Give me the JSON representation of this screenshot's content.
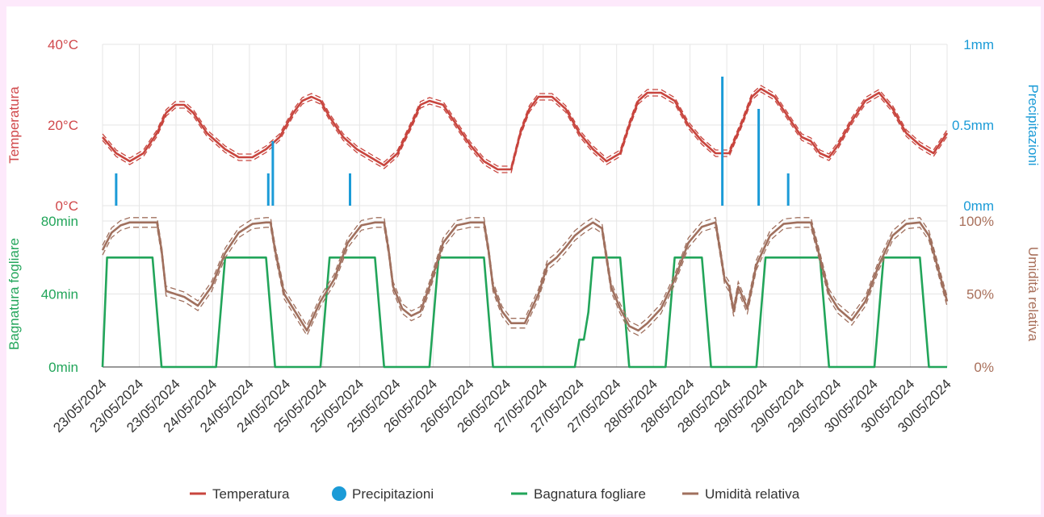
{
  "chart_data": {
    "type": "line",
    "x_dates": [
      "23/05/2024",
      "23/05/2024",
      "23/05/2024",
      "24/05/2024",
      "24/05/2024",
      "24/05/2024",
      "25/05/2024",
      "25/05/2024",
      "25/05/2024",
      "26/05/2024",
      "26/05/2024",
      "26/05/2024",
      "27/05/2024",
      "27/05/2024",
      "27/05/2024",
      "28/05/2024",
      "28/05/2024",
      "28/05/2024",
      "29/05/2024",
      "29/05/2024",
      "29/05/2024",
      "30/05/2024",
      "30/05/2024",
      "30/05/2024"
    ],
    "x_range_hours": [
      0,
      186
    ],
    "panels": {
      "top": {
        "left_axis": {
          "label": "Temperatura",
          "ticks": [
            "0°C",
            "20°C",
            "40°C"
          ],
          "range": [
            0,
            40
          ],
          "color": "#d0474a"
        },
        "right_axis": {
          "label": "Precipitazioni",
          "ticks": [
            "0mm",
            "0.5mm",
            "1mm"
          ],
          "range": [
            0,
            1
          ],
          "color": "#1b9bd7"
        }
      },
      "bottom": {
        "left_axis": {
          "label": "Bagnatura fogliare",
          "ticks": [
            "0min",
            "40min",
            "80min"
          ],
          "range": [
            0,
            80
          ],
          "color": "#22a55a"
        },
        "right_axis": {
          "label": "Umidità relativa",
          "ticks": [
            "0%",
            "50%",
            "100%"
          ],
          "range": [
            0,
            100
          ],
          "color": "#a86f5a"
        }
      }
    },
    "series": [
      {
        "name": "Temperatura",
        "panel": "top",
        "axis": "left",
        "color": "#c8453e",
        "x": [
          0,
          3,
          6,
          9,
          12,
          14,
          16,
          18,
          20,
          23,
          27,
          30,
          33,
          36,
          39,
          42,
          44,
          46,
          48,
          50,
          53,
          56,
          59,
          62,
          65,
          68,
          70,
          72,
          75,
          78,
          81,
          84,
          87,
          90,
          92,
          94,
          96,
          99,
          102,
          105,
          108,
          111,
          114,
          116,
          118,
          120,
          123,
          126,
          129,
          132,
          135,
          138,
          141,
          143,
          145,
          148,
          151,
          154,
          156,
          158,
          160,
          162,
          165,
          168,
          171,
          174,
          177,
          180,
          183,
          186
        ],
        "y": [
          17,
          13,
          11,
          13,
          18,
          23,
          25,
          25,
          23,
          18,
          14,
          12,
          12,
          14,
          17,
          23,
          26,
          27,
          26,
          22,
          17,
          14,
          12,
          10,
          13,
          20,
          25,
          26,
          25,
          20,
          15,
          11,
          9,
          9,
          18,
          24,
          27,
          27,
          24,
          18,
          14,
          11,
          13,
          20,
          26,
          28,
          28,
          26,
          20,
          16,
          13,
          13,
          21,
          27,
          29,
          27,
          22,
          17,
          16,
          13,
          12,
          15,
          21,
          26,
          28,
          24,
          18,
          15,
          13,
          18
        ]
      },
      {
        "name": "Precipitazioni",
        "panel": "top",
        "axis": "right",
        "color": "#1b9bd7",
        "x": [
          3,
          36.5,
          37.5,
          54.5,
          136.5,
          144.5,
          151
        ],
        "y": [
          0.2,
          0.2,
          0.4,
          0.2,
          0.8,
          0.6,
          0.2
        ]
      },
      {
        "name": "Bagnatura fogliare",
        "panel": "bottom",
        "axis": "left",
        "color": "#22a55a",
        "x": [
          0,
          1,
          11,
          13,
          25,
          27,
          36,
          38,
          48,
          50,
          60,
          62,
          72,
          74,
          84,
          86,
          96,
          98,
          104,
          105,
          106,
          107,
          108,
          110,
          114,
          116,
          124,
          126,
          132,
          134,
          144,
          146,
          158,
          160,
          170,
          172,
          180,
          182,
          186
        ],
        "y": [
          0,
          60,
          60,
          0,
          0,
          60,
          60,
          0,
          0,
          60,
          60,
          0,
          0,
          60,
          60,
          0,
          0,
          0,
          0,
          15,
          15,
          30,
          60,
          60,
          60,
          0,
          0,
          60,
          60,
          0,
          0,
          60,
          60,
          0,
          0,
          60,
          60,
          0,
          0
        ]
      },
      {
        "name": "Umidità relativa",
        "panel": "bottom",
        "axis": "right",
        "color": "#a0705e",
        "x": [
          0,
          2,
          4,
          6,
          9,
          12,
          13,
          14,
          16,
          18,
          21,
          24,
          27,
          30,
          33,
          36,
          37,
          38,
          40,
          42,
          45,
          48,
          51,
          54,
          57,
          60,
          62,
          63,
          64,
          66,
          68,
          70,
          72,
          75,
          78,
          81,
          84,
          85,
          86,
          88,
          90,
          93,
          96,
          98,
          100,
          102,
          104,
          106,
          108,
          110,
          111,
          112,
          114,
          116,
          118,
          120,
          123,
          126,
          129,
          132,
          135,
          136,
          137,
          138,
          139,
          140,
          142,
          144,
          147,
          150,
          153,
          156,
          158,
          160,
          162,
          165,
          168,
          171,
          174,
          177,
          180,
          182,
          186
        ],
        "y": [
          80,
          92,
          97,
          99,
          99,
          99,
          80,
          52,
          50,
          48,
          42,
          55,
          78,
          92,
          98,
          99,
          99,
          80,
          50,
          40,
          25,
          45,
          60,
          85,
          97,
          99,
          99,
          80,
          55,
          40,
          35,
          38,
          55,
          85,
          97,
          99,
          99,
          80,
          55,
          38,
          30,
          30,
          50,
          70,
          75,
          82,
          90,
          95,
          99,
          95,
          75,
          55,
          40,
          28,
          25,
          30,
          40,
          60,
          85,
          96,
          99,
          80,
          60,
          55,
          38,
          55,
          40,
          70,
          90,
          98,
          99,
          99,
          75,
          50,
          40,
          32,
          45,
          70,
          90,
          98,
          99,
          90,
          45
        ]
      }
    ],
    "legend": {
      "placement": "bottom-center",
      "items": [
        {
          "label": "Temperatura",
          "marker": "line",
          "color": "#c8453e"
        },
        {
          "label": "Precipitazioni",
          "marker": "dot",
          "color": "#1b9bd7"
        },
        {
          "label": "Bagnatura fogliare",
          "marker": "line",
          "color": "#22a55a"
        },
        {
          "label": "Umidità relativa",
          "marker": "line",
          "color": "#a0705e"
        }
      ]
    },
    "grid": true
  }
}
